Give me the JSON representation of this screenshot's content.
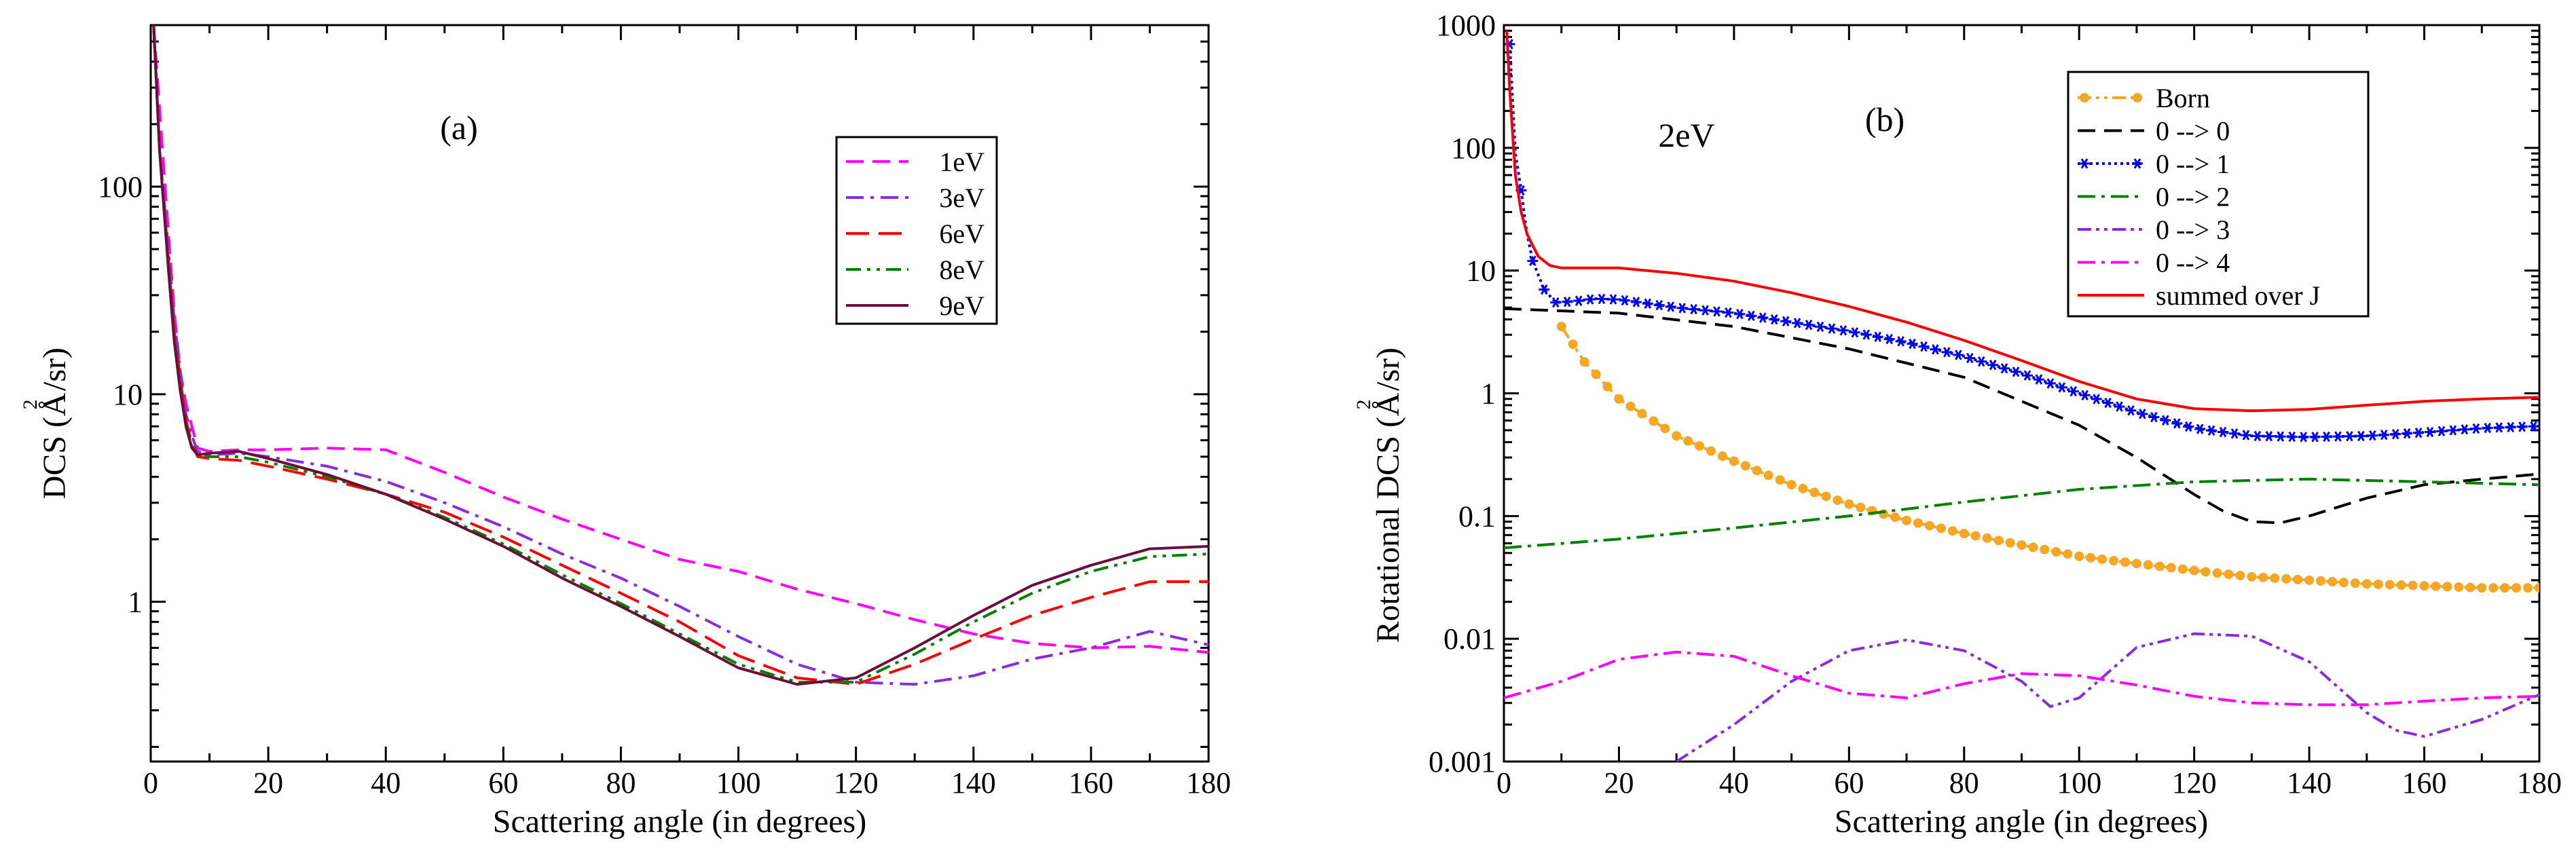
{
  "chart_data": [
    {
      "type": "line",
      "panel_label": "(a)",
      "xlabel": "Scattering angle (in degrees)",
      "ylabel": "DCS (Å²/sr)",
      "ylabel_main": "DCS (",
      "ylabel_unit": "Å",
      "ylabel_exp": "2",
      "ylabel_tail": "/sr)",
      "x_ticks": [
        "0",
        "20",
        "40",
        "60",
        "80",
        "100",
        "120",
        "140",
        "160",
        "180"
      ],
      "y_ticks": [
        "1",
        "10",
        "100"
      ],
      "y_scale": "log",
      "xlim": [
        0,
        180
      ],
      "ylim": [
        0.17,
        600
      ],
      "legend_position": "top-right",
      "series": [
        {
          "name": "1eV",
          "color": "#ff00ff",
          "dash": "26,13",
          "x": [
            0.5,
            2,
            3,
            4,
            5,
            6,
            7,
            8,
            10,
            15,
            20,
            30,
            40,
            50,
            60,
            70,
            80,
            90,
            100,
            110,
            120,
            130,
            140,
            150,
            160,
            170,
            180
          ],
          "y": [
            600,
            150,
            60,
            25,
            13,
            9,
            7,
            5.5,
            5.3,
            5.4,
            5.4,
            5.5,
            5.4,
            4.2,
            3.2,
            2.5,
            2.0,
            1.6,
            1.4,
            1.15,
            0.98,
            0.82,
            0.7,
            0.63,
            0.6,
            0.61,
            0.57
          ]
        },
        {
          "name": "3eV",
          "color": "#8a2be2",
          "dash": "26,10,5,10",
          "x": [
            0.5,
            1.5,
            3,
            4,
            5,
            6,
            7,
            8,
            10,
            15,
            20,
            30,
            40,
            50,
            60,
            70,
            80,
            90,
            100,
            110,
            120,
            130,
            140,
            150,
            160,
            170,
            180
          ],
          "y": [
            600,
            150,
            50,
            23,
            13,
            8,
            6.3,
            5.3,
            5.1,
            5.2,
            5.0,
            4.5,
            3.8,
            3.0,
            2.3,
            1.7,
            1.3,
            0.95,
            0.68,
            0.5,
            0.41,
            0.4,
            0.44,
            0.53,
            0.6,
            0.72,
            0.62
          ]
        },
        {
          "name": "6eV",
          "color": "#ff0000",
          "dash": "34,14",
          "x": [
            0.5,
            1.5,
            3,
            4,
            5,
            6,
            7,
            8,
            10,
            15,
            20,
            30,
            40,
            50,
            60,
            70,
            80,
            90,
            100,
            110,
            120,
            130,
            140,
            150,
            160,
            170,
            180
          ],
          "y": [
            600,
            150,
            45,
            20,
            12,
            7.5,
            5.8,
            5.0,
            4.9,
            4.8,
            4.5,
            3.9,
            3.3,
            2.7,
            2.05,
            1.5,
            1.1,
            0.8,
            0.55,
            0.43,
            0.4,
            0.5,
            0.66,
            0.86,
            1.05,
            1.25,
            1.25
          ]
        },
        {
          "name": "8eV",
          "color": "#008000",
          "dash": "22,9,5,9,5,9",
          "x": [
            0.5,
            1.5,
            3,
            4,
            5,
            6,
            7,
            8,
            10,
            15,
            20,
            30,
            40,
            50,
            60,
            70,
            80,
            90,
            100,
            110,
            120,
            130,
            140,
            150,
            160,
            170,
            180
          ],
          "y": [
            600,
            150,
            42,
            19,
            11,
            7.2,
            5.6,
            5.1,
            5.0,
            5.0,
            4.7,
            4.0,
            3.3,
            2.55,
            1.9,
            1.35,
            0.98,
            0.7,
            0.5,
            0.41,
            0.41,
            0.56,
            0.8,
            1.1,
            1.4,
            1.65,
            1.7
          ]
        },
        {
          "name": "9eV",
          "color": "#6b0f3a",
          "dash": "",
          "x": [
            0.5,
            1.5,
            3,
            4,
            5,
            6,
            7,
            8,
            10,
            15,
            20,
            30,
            40,
            50,
            60,
            70,
            80,
            90,
            100,
            110,
            120,
            130,
            140,
            150,
            160,
            170,
            180
          ],
          "y": [
            600,
            150,
            40,
            18,
            10.5,
            7,
            5.5,
            5.1,
            5.2,
            5.3,
            4.9,
            4.1,
            3.3,
            2.5,
            1.85,
            1.3,
            0.95,
            0.68,
            0.48,
            0.4,
            0.43,
            0.6,
            0.86,
            1.2,
            1.5,
            1.8,
            1.85
          ]
        }
      ]
    },
    {
      "type": "line",
      "panel_label": "(b)",
      "annotation": "2eV",
      "xlabel": "Scattering angle (in degrees)",
      "ylabel": "Rotational DCS (Å²/sr)",
      "ylabel_main": "Rotational DCS (",
      "ylabel_unit": "Å",
      "ylabel_exp": "2",
      "ylabel_tail": "/sr)",
      "x_ticks": [
        "0",
        "20",
        "40",
        "60",
        "80",
        "100",
        "120",
        "140",
        "160",
        "180"
      ],
      "y_ticks": [
        "0.001",
        "0.01",
        "0.1",
        "1",
        "10",
        "100",
        "1000"
      ],
      "y_scale": "log",
      "xlim": [
        0,
        180
      ],
      "ylim": [
        0.001,
        1000
      ],
      "legend_position": "top-right",
      "series": [
        {
          "name": "Born",
          "color": "#f5a623",
          "dash": "20,7,5,7,5,7",
          "marker": "circle",
          "x": [
            10,
            14,
            20,
            30,
            40,
            50,
            60,
            70,
            80,
            90,
            100,
            110,
            120,
            130,
            140,
            150,
            160,
            170,
            180
          ],
          "y": [
            3.5,
            1.8,
            0.9,
            0.45,
            0.28,
            0.18,
            0.125,
            0.092,
            0.072,
            0.058,
            0.047,
            0.041,
            0.036,
            0.032,
            0.03,
            0.028,
            0.027,
            0.026,
            0.026
          ]
        },
        {
          "name": "0 --> 0",
          "color": "#000000",
          "dash": "26,13",
          "x": [
            0,
            20,
            40,
            60,
            80,
            100,
            110,
            120,
            125,
            130,
            135,
            140,
            150,
            160,
            170,
            180
          ],
          "y": [
            4.9,
            4.5,
            3.5,
            2.3,
            1.35,
            0.55,
            0.3,
            0.15,
            0.11,
            0.09,
            0.088,
            0.1,
            0.14,
            0.18,
            0.2,
            0.22
          ]
        },
        {
          "name": "0 --> 1",
          "color": "#0000ff",
          "dash": "4,5",
          "marker": "star",
          "x": [
            1,
            2,
            3,
            4,
            5,
            7,
            9,
            12,
            16,
            20,
            30,
            40,
            50,
            60,
            70,
            80,
            90,
            100,
            110,
            120,
            130,
            140,
            150,
            160,
            170,
            180
          ],
          "y": [
            700,
            90,
            45,
            20,
            12,
            7,
            5.5,
            5.6,
            5.9,
            5.8,
            5.0,
            4.5,
            3.8,
            3.2,
            2.6,
            2.0,
            1.45,
            1.0,
            0.7,
            0.52,
            0.45,
            0.44,
            0.45,
            0.48,
            0.52,
            0.54
          ]
        },
        {
          "name": "0 --> 2",
          "color": "#008000",
          "dash": "26,9,5,9",
          "x": [
            0,
            20,
            40,
            60,
            80,
            100,
            120,
            140,
            160,
            180
          ],
          "y": [
            0.055,
            0.065,
            0.08,
            0.1,
            0.13,
            0.165,
            0.19,
            0.2,
            0.19,
            0.18
          ]
        },
        {
          "name": "0 --> 3",
          "color": "#8a2be2",
          "dash": "20,7,5,7,5,7",
          "x": [
            30,
            40,
            50,
            60,
            70,
            80,
            90,
            95,
            100,
            110,
            120,
            130,
            140,
            150,
            155,
            160,
            170,
            180
          ],
          "y": [
            0.001,
            0.002,
            0.0045,
            0.008,
            0.0098,
            0.008,
            0.0045,
            0.0028,
            0.0033,
            0.0085,
            0.011,
            0.0105,
            0.0065,
            0.0025,
            0.0018,
            0.0016,
            0.0022,
            0.0035
          ]
        },
        {
          "name": "0 --> 4",
          "color": "#ff00ff",
          "dash": "26,9,5,9",
          "x": [
            0,
            10,
            20,
            30,
            40,
            50,
            60,
            70,
            80,
            90,
            100,
            110,
            120,
            130,
            140,
            150,
            160,
            170,
            180
          ],
          "y": [
            0.0033,
            0.0045,
            0.0068,
            0.0078,
            0.0072,
            0.005,
            0.0036,
            0.0033,
            0.0043,
            0.0052,
            0.005,
            0.0042,
            0.0034,
            0.003,
            0.0029,
            0.0029,
            0.0031,
            0.0033,
            0.0034
          ]
        },
        {
          "name": "summed over J",
          "color": "#ff0000",
          "dash": "",
          "x": [
            0.5,
            1,
            2,
            3,
            4,
            5,
            6,
            8,
            10,
            14,
            20,
            30,
            40,
            50,
            60,
            70,
            80,
            90,
            100,
            110,
            120,
            130,
            140,
            150,
            160,
            170,
            180
          ],
          "y": [
            900,
            300,
            60,
            30,
            20,
            16,
            13,
            11,
            10.5,
            10.5,
            10.5,
            9.5,
            8.2,
            6.6,
            5.1,
            3.8,
            2.7,
            1.85,
            1.25,
            0.9,
            0.75,
            0.72,
            0.74,
            0.8,
            0.86,
            0.9,
            0.93
          ]
        }
      ]
    }
  ]
}
